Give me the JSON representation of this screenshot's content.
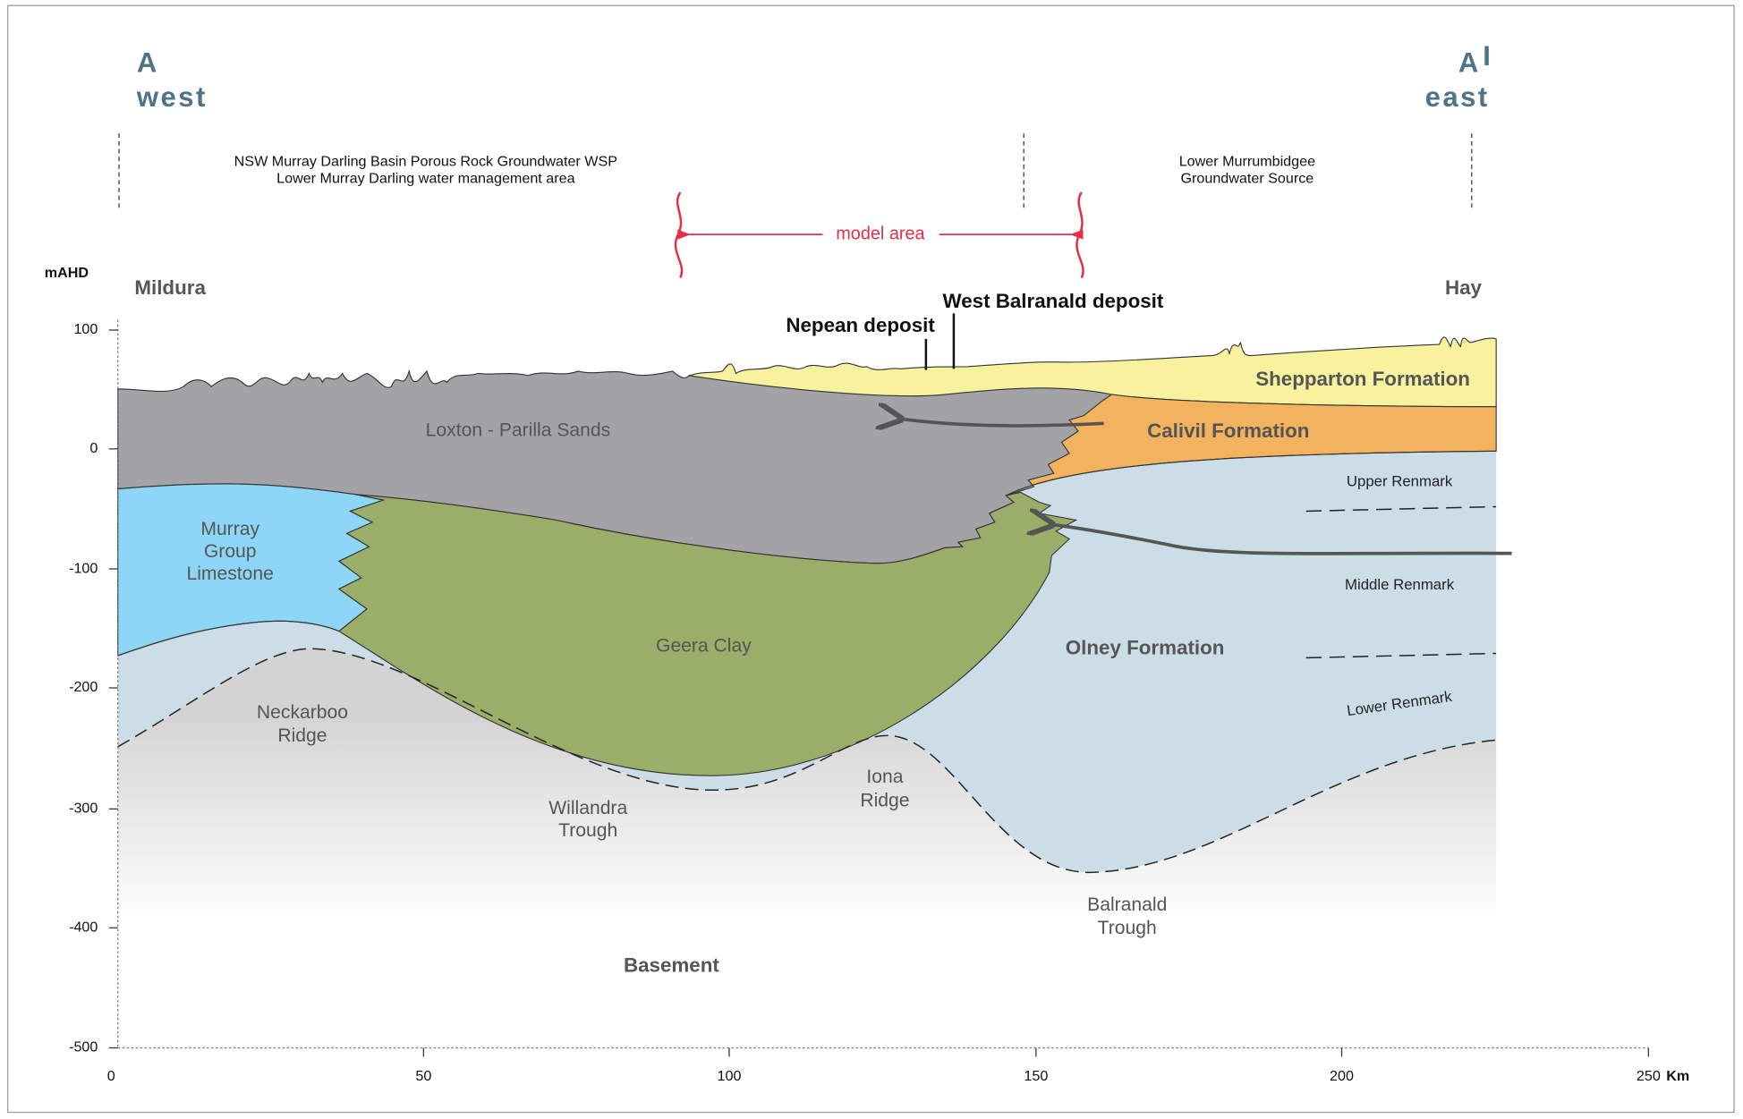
{
  "header": {
    "left_letter": "A",
    "left_direction": "west",
    "right_letter": "A",
    "right_prime": "I",
    "right_direction": "east"
  },
  "zones": [
    {
      "lines": [
        "NSW Murray Darling Basin Porous Rock Groundwater WSP",
        "Lower Murray Darling water management area"
      ]
    },
    {
      "lines": [
        "Lower Murrumbidgee",
        "Groundwater Source"
      ]
    }
  ],
  "model_area": "model area",
  "axis": {
    "y_title": "mAHD",
    "y_ticks": [
      "100",
      "0",
      "-100",
      "-200",
      "-300",
      "-400",
      "-500"
    ],
    "x_ticks": [
      "0",
      "50",
      "100",
      "150",
      "200",
      "250"
    ],
    "x_unit": "Km"
  },
  "places": [
    "Mildura",
    "Hay"
  ],
  "deposits": [
    "Nepean deposit",
    "West Balranald deposit"
  ],
  "formations": [
    {
      "lines": [
        "Loxton - Parilla Sands"
      ]
    },
    {
      "lines": [
        "Murray",
        "Group",
        "Limestone"
      ]
    },
    {
      "lines": [
        "Geera Clay"
      ]
    },
    {
      "lines": [
        "Olney Formation"
      ]
    },
    {
      "lines": [
        "Shepparton Formation"
      ]
    },
    {
      "lines": [
        "Calivil Formation"
      ]
    },
    {
      "lines": [
        "Upper Renmark"
      ]
    },
    {
      "lines": [
        "Middle Renmark"
      ]
    },
    {
      "lines": [
        "Lower Renmark"
      ]
    },
    {
      "lines": [
        "Neckarboo",
        "Ridge"
      ]
    },
    {
      "lines": [
        "Willandra",
        "Trough"
      ]
    },
    {
      "lines": [
        "Iona",
        "Ridge"
      ]
    },
    {
      "lines": [
        "Balranald",
        "Trough"
      ]
    },
    {
      "lines": [
        "Basement"
      ]
    }
  ]
}
